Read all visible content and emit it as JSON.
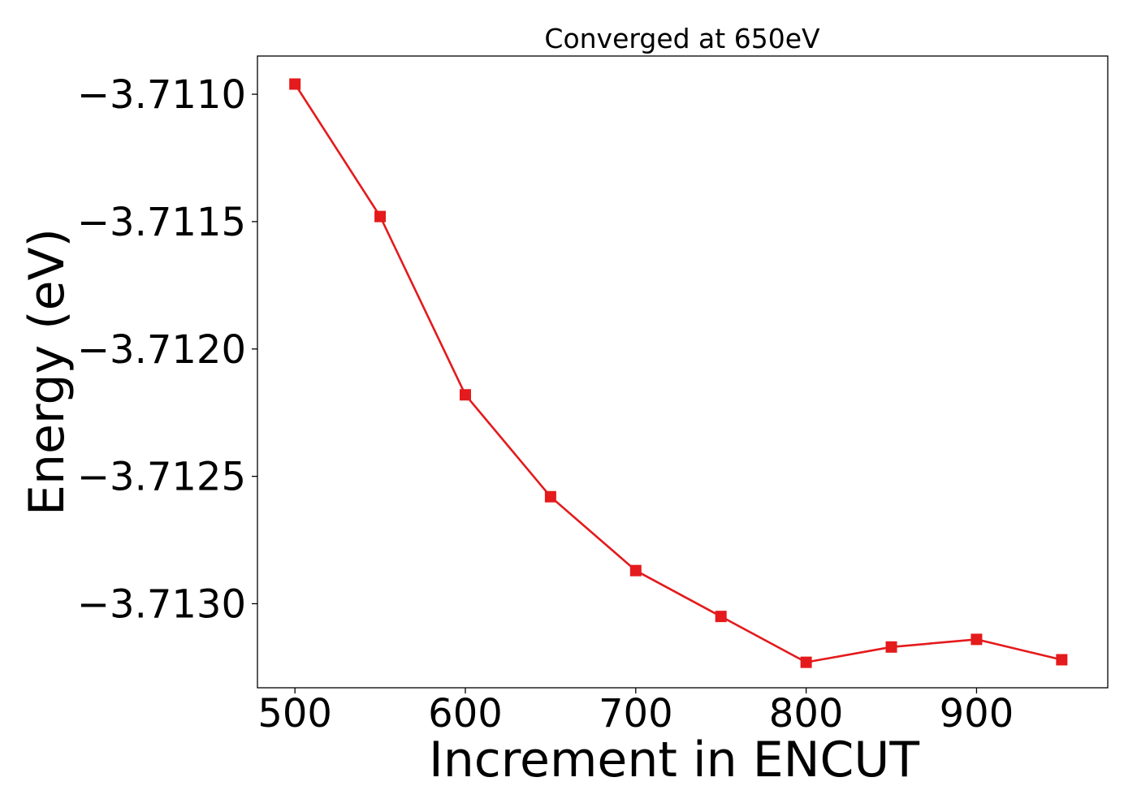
{
  "chart_data": {
    "type": "line",
    "title": "Converged at 650eV",
    "xlabel": "Increment in ENCUT",
    "ylabel": "Energy (eV)",
    "xlim": [
      478,
      977
    ],
    "ylim": [
      -3.71333,
      -3.71085
    ],
    "xticks": [
      500,
      600,
      700,
      800,
      900
    ],
    "xtick_labels": [
      "500",
      "600",
      "700",
      "800",
      "900"
    ],
    "yticks": [
      -3.711,
      -3.7115,
      -3.712,
      -3.7125,
      -3.713
    ],
    "ytick_labels": [
      "−3.7110",
      "−3.7115",
      "−3.7120",
      "−3.7125",
      "−3.7130"
    ],
    "grid": false,
    "series": [
      {
        "color": "#e41a1c",
        "marker": "square",
        "x": [
          500,
          550,
          600,
          650,
          700,
          750,
          800,
          850,
          900,
          950
        ],
        "y": [
          -3.71096,
          -3.71148,
          -3.71218,
          -3.71258,
          -3.71287,
          -3.71305,
          -3.71323,
          -3.71317,
          -3.71314,
          -3.71322
        ]
      }
    ]
  }
}
